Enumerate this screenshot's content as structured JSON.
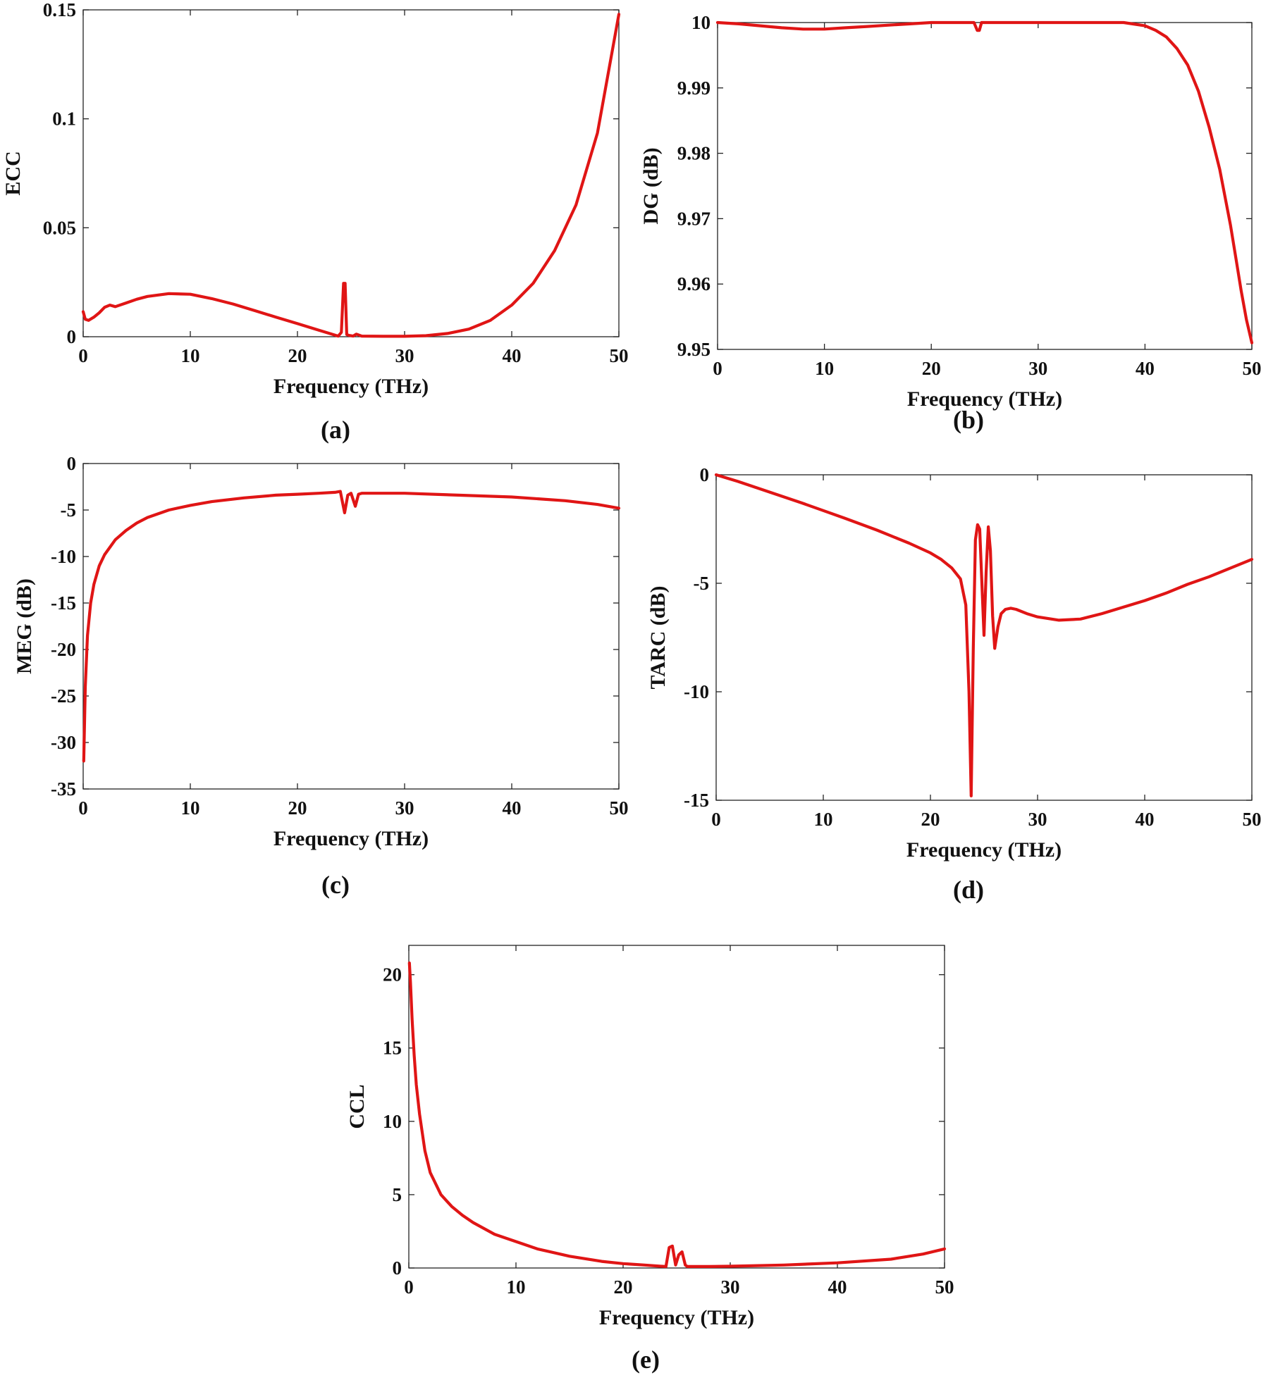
{
  "accent_color": "#e01515",
  "charts": [
    {
      "id": "a",
      "panel_label": "(a)",
      "type": "line",
      "xlabel": "Frequency (THz)",
      "ylabel": "ECC",
      "xlim": [
        0,
        50
      ],
      "ylim": [
        0,
        0.15
      ],
      "xticks": [
        "0",
        "10",
        "20",
        "30",
        "40",
        "50"
      ],
      "yticks": [
        "0",
        "0.05",
        "0.1",
        "0.15"
      ],
      "series": [
        {
          "x": [
            0,
            0.2,
            0.5,
            1,
            1.5,
            2,
            2.5,
            3,
            4,
            5,
            6,
            8,
            10,
            12,
            14,
            16,
            18,
            20,
            22,
            23,
            23.8,
            24.1,
            24.3,
            24.45,
            24.6,
            24.8,
            25.2,
            25.5,
            26,
            28,
            30,
            32,
            34,
            36,
            38,
            40,
            42,
            44,
            46,
            48,
            50
          ],
          "y": [
            0.0115,
            0.008,
            0.0075,
            0.009,
            0.011,
            0.0135,
            0.0145,
            0.0138,
            0.0155,
            0.0172,
            0.0185,
            0.0198,
            0.0195,
            0.0175,
            0.015,
            0.012,
            0.009,
            0.006,
            0.003,
            0.0015,
            0.0003,
            0.002,
            0.0245,
            0.0245,
            0.001,
            0.0006,
            0.0003,
            0.0012,
            0.0003,
            0.0002,
            0.0002,
            0.0005,
            0.0015,
            0.0035,
            0.0075,
            0.0145,
            0.0245,
            0.0395,
            0.0605,
            0.0935,
            0.148
          ]
        }
      ]
    },
    {
      "id": "b",
      "panel_label": "(b)",
      "type": "line",
      "xlabel": "Frequency (THz)",
      "ylabel": "DG (dB)",
      "xlim": [
        0,
        50
      ],
      "ylim": [
        9.95,
        10.0
      ],
      "xticks": [
        "0",
        "10",
        "20",
        "30",
        "40",
        "50"
      ],
      "yticks": [
        "9.95",
        "9.96",
        "9.97",
        "9.98",
        "9.99",
        "10"
      ],
      "series": [
        {
          "x": [
            0,
            2,
            4,
            6,
            8,
            10,
            12,
            14,
            16,
            18,
            20,
            22,
            24,
            24.3,
            24.5,
            24.7,
            25,
            28,
            30,
            32,
            34,
            36,
            38,
            40,
            41,
            42,
            43,
            44,
            45,
            46,
            47,
            48,
            48.5,
            49,
            49.5,
            50
          ],
          "y": [
            10.0,
            9.9998,
            9.9995,
            9.9992,
            9.999,
            9.999,
            9.9992,
            9.9994,
            9.9996,
            9.9998,
            10.0,
            10.0,
            10.0,
            9.9988,
            9.9988,
            10.0,
            10.0,
            10.0,
            10.0,
            10.0,
            10.0,
            10.0,
            10.0,
            9.9995,
            9.9988,
            9.9978,
            9.996,
            9.9935,
            9.9895,
            9.984,
            9.9775,
            9.969,
            9.964,
            9.959,
            9.9545,
            9.951
          ]
        }
      ]
    },
    {
      "id": "c",
      "panel_label": "(c)",
      "type": "line",
      "xlabel": "Frequency (THz)",
      "ylabel": "MEG (dB)",
      "xlim": [
        0,
        50
      ],
      "ylim": [
        -35,
        0
      ],
      "xticks": [
        "0",
        "10",
        "20",
        "30",
        "40",
        "50"
      ],
      "yticks": [
        "-35",
        "-30",
        "-25",
        "-20",
        "-15",
        "-10",
        "-5",
        "0"
      ],
      "series": [
        {
          "x": [
            0.05,
            0.2,
            0.4,
            0.7,
            1,
            1.5,
            2,
            3,
            4,
            5,
            6,
            8,
            10,
            12,
            15,
            18,
            20,
            22,
            23.5,
            24,
            24.4,
            24.7,
            25,
            25.4,
            25.7,
            26,
            28,
            30,
            35,
            40,
            45,
            48,
            50
          ],
          "y": [
            -32,
            -24,
            -18.5,
            -15,
            -13,
            -11,
            -9.8,
            -8.2,
            -7.2,
            -6.4,
            -5.8,
            -5.0,
            -4.5,
            -4.1,
            -3.7,
            -3.4,
            -3.3,
            -3.2,
            -3.1,
            -3.0,
            -5.3,
            -3.4,
            -3.2,
            -4.6,
            -3.3,
            -3.2,
            -3.2,
            -3.2,
            -3.4,
            -3.6,
            -4.0,
            -4.4,
            -4.8
          ]
        }
      ]
    },
    {
      "id": "d",
      "panel_label": "(d)",
      "type": "line",
      "xlabel": "Frequency (THz)",
      "ylabel": "TARC (dB)",
      "xlim": [
        0,
        50
      ],
      "ylim": [
        -15,
        0
      ],
      "xticks": [
        "0",
        "10",
        "20",
        "30",
        "40",
        "50"
      ],
      "yticks": [
        "-15",
        "-10",
        "-5",
        "0"
      ],
      "series": [
        {
          "x": [
            0,
            2,
            5,
            8,
            10,
            12,
            15,
            18,
            20,
            21,
            22,
            22.8,
            23.3,
            23.6,
            23.8,
            24.0,
            24.2,
            24.4,
            24.6,
            24.8,
            25.0,
            25.2,
            25.4,
            25.6,
            25.8,
            26.0,
            26.3,
            26.6,
            27,
            27.5,
            28,
            29,
            30,
            32,
            34,
            36,
            38,
            40,
            42,
            44,
            46,
            48,
            50
          ],
          "y": [
            0,
            -0.3,
            -0.8,
            -1.3,
            -1.65,
            -2.0,
            -2.55,
            -3.15,
            -3.6,
            -3.9,
            -4.3,
            -4.8,
            -6.0,
            -10.0,
            -14.8,
            -8.0,
            -3.0,
            -2.3,
            -2.5,
            -5.0,
            -7.4,
            -4.5,
            -2.4,
            -3.5,
            -6.5,
            -8.0,
            -7.0,
            -6.4,
            -6.2,
            -6.15,
            -6.2,
            -6.4,
            -6.55,
            -6.7,
            -6.65,
            -6.4,
            -6.1,
            -5.8,
            -5.45,
            -5.05,
            -4.7,
            -4.3,
            -3.9
          ]
        }
      ]
    },
    {
      "id": "e",
      "panel_label": "(e)",
      "type": "line",
      "xlabel": "Frequency (THz)",
      "ylabel": "CCL",
      "xlim": [
        0,
        50
      ],
      "ylim": [
        0,
        22
      ],
      "xticks": [
        "0",
        "10",
        "20",
        "30",
        "40",
        "50"
      ],
      "yticks": [
        "0",
        "5",
        "10",
        "15",
        "20"
      ],
      "series": [
        {
          "x": [
            0.05,
            0.15,
            0.3,
            0.5,
            0.7,
            1,
            1.5,
            2,
            3,
            4,
            5,
            6,
            8,
            10,
            12,
            15,
            18,
            20,
            22,
            23.5,
            24.0,
            24.3,
            24.6,
            24.9,
            25.2,
            25.5,
            25.8,
            26.0,
            26.5,
            28,
            30,
            35,
            40,
            45,
            48,
            50
          ],
          "y": [
            20.8,
            19.5,
            17.0,
            14.5,
            12.5,
            10.5,
            8.0,
            6.5,
            5.0,
            4.2,
            3.6,
            3.1,
            2.3,
            1.8,
            1.3,
            0.8,
            0.45,
            0.3,
            0.2,
            0.12,
            0.1,
            1.4,
            1.5,
            0.2,
            0.9,
            1.1,
            0.2,
            0.1,
            0.1,
            0.1,
            0.12,
            0.2,
            0.35,
            0.6,
            0.95,
            1.3
          ]
        }
      ]
    }
  ]
}
